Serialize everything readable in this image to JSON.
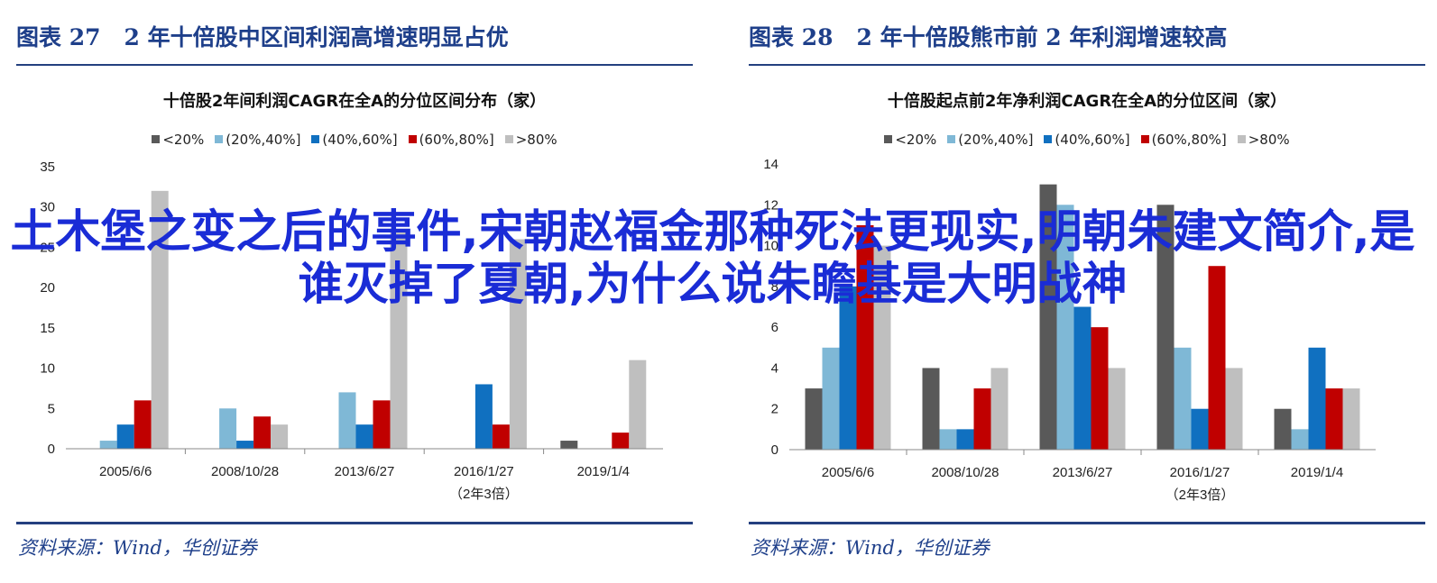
{
  "overlay_text": "土木堡之变之后的事件,宋朝赵福金那种死法更现实,明朝朱建文简介,是谁灭掉了夏朝,为什么说朱瞻基是大明战神",
  "colors": {
    "heading": "#1e3f8a",
    "rule": "#24407f",
    "overlay": "#1a2cd6",
    "series": [
      "#595959",
      "#7fb8d6",
      "#1070c0",
      "#c00000",
      "#bfbfbf"
    ]
  },
  "panels": [
    {
      "fig_label": "图表 27",
      "fig_heading": "2 年十倍股中区间利润高增速明显占优",
      "source": "资料来源：Wind，华创证券"
    },
    {
      "fig_label": "图表 28",
      "fig_heading": "2 年十倍股熊市前 2 年利润增速较高",
      "source": "资料来源：Wind，华创证券"
    }
  ],
  "chart_data": [
    {
      "type": "bar",
      "title": "十倍股2年间利润CAGR在全A的分位区间分布（家）",
      "legend_position": "top",
      "categories": [
        "2005/6/6",
        "2008/10/28",
        "2013/6/27",
        "2016/1/27",
        "2019/1/4"
      ],
      "category_notes": [
        "",
        "",
        "",
        "（2年3倍）",
        ""
      ],
      "series": [
        {
          "name": "<20%",
          "values": [
            0,
            0,
            0,
            0,
            1
          ]
        },
        {
          "name": "(20%,40%]",
          "values": [
            1,
            5,
            7,
            0,
            0
          ]
        },
        {
          "name": "(40%,60%]",
          "values": [
            3,
            1,
            3,
            8,
            0
          ]
        },
        {
          "name": "(60%,80%]",
          "values": [
            6,
            4,
            6,
            3,
            2
          ]
        },
        {
          "name": ">80%",
          "values": [
            32,
            3,
            27,
            26,
            11
          ]
        }
      ],
      "ylim": [
        0,
        35
      ],
      "yticks": [
        0,
        5,
        10,
        15,
        20,
        25,
        30,
        35
      ],
      "grid": false
    },
    {
      "type": "bar",
      "title": "十倍股起点前2年净利润CAGR在全A的分位区间（家）",
      "legend_position": "top",
      "categories": [
        "2005/6/6",
        "2008/10/28",
        "2013/6/27",
        "2016/1/27",
        "2019/1/4"
      ],
      "category_notes": [
        "",
        "",
        "",
        "（2年3倍）",
        ""
      ],
      "series": [
        {
          "name": "<20%",
          "values": [
            3,
            4,
            13,
            12,
            2
          ]
        },
        {
          "name": "(20%,40%]",
          "values": [
            5,
            1,
            12,
            5,
            1
          ]
        },
        {
          "name": "(40%,60%]",
          "values": [
            8,
            1,
            7,
            2,
            5
          ]
        },
        {
          "name": "(60%,80%]",
          "values": [
            11,
            3,
            6,
            9,
            3
          ]
        },
        {
          "name": ">80%",
          "values": [
            10,
            4,
            4,
            4,
            3
          ]
        }
      ],
      "ylim": [
        0,
        14
      ],
      "yticks": [
        0,
        2,
        4,
        6,
        8,
        10,
        12,
        14
      ],
      "grid": false
    }
  ]
}
